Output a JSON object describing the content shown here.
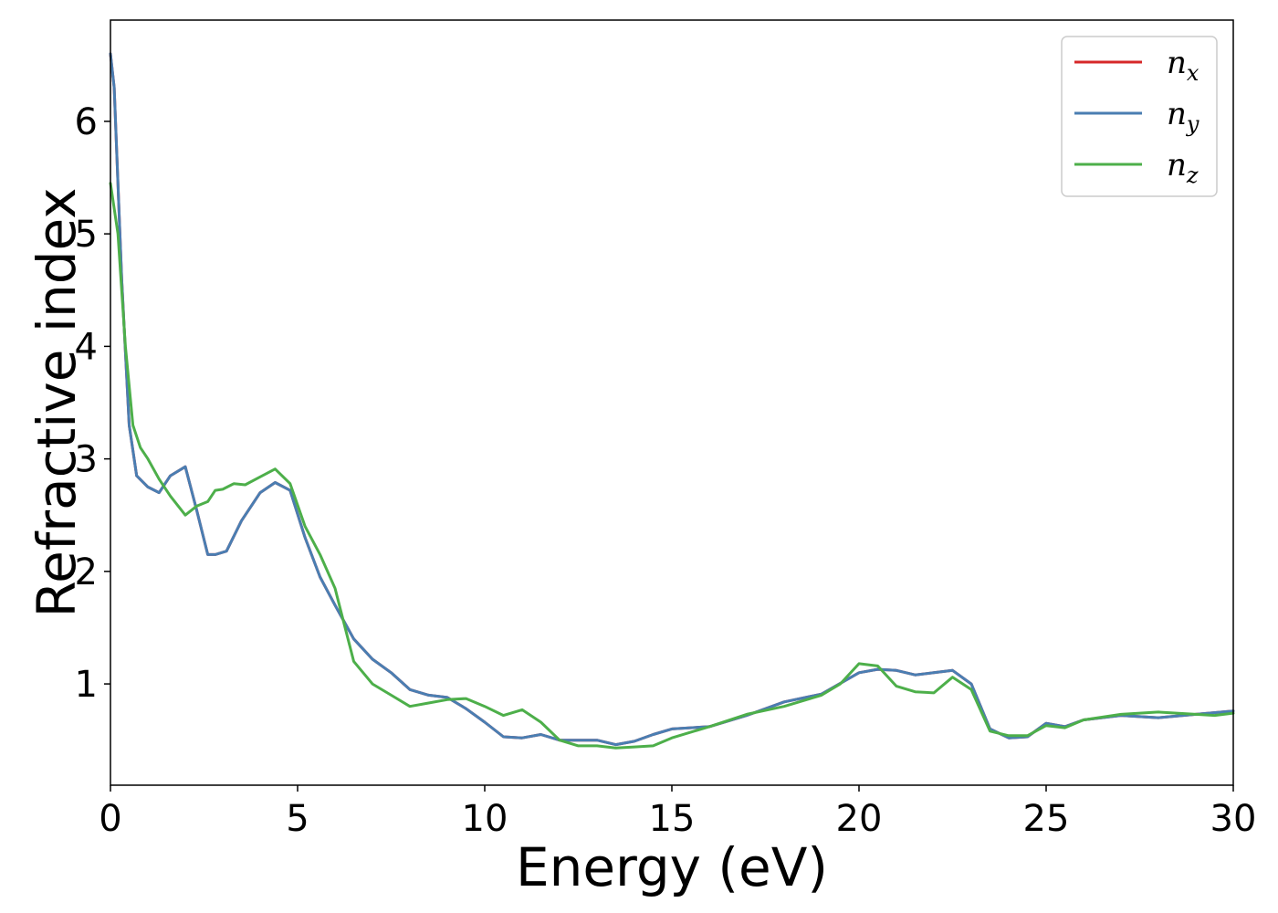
{
  "chart_data": {
    "type": "line",
    "title": "",
    "xlabel": "Energy (eV)",
    "ylabel": "Refractive index",
    "xlim": [
      0,
      30
    ],
    "ylim": [
      0.1,
      6.9
    ],
    "xticks": [
      0,
      5,
      10,
      15,
      20,
      25,
      30
    ],
    "yticks": [
      1,
      2,
      3,
      4,
      5,
      6
    ],
    "grid": false,
    "legend_position": "top-right",
    "series": [
      {
        "name": "n",
        "subscript": "x",
        "color": "#d62728",
        "x": [
          0,
          0.1,
          0.3,
          0.5,
          0.7,
          1.0,
          1.3,
          1.6,
          2.0,
          2.3,
          2.6,
          2.8,
          3.1,
          3.5,
          4.0,
          4.4,
          4.8,
          5.2,
          5.6,
          6.0,
          6.5,
          7.0,
          7.5,
          8.0,
          8.5,
          9.0,
          9.5,
          10.0,
          10.5,
          11.0,
          11.5,
          12.0,
          12.5,
          13.0,
          13.5,
          14.0,
          14.5,
          15.0,
          16.0,
          17.0,
          18.0,
          19.0,
          20.0,
          20.5,
          21.0,
          21.5,
          22.0,
          22.5,
          23.0,
          23.5,
          24.0,
          24.5,
          25.0,
          25.5,
          26.0,
          27.0,
          28.0,
          29.0,
          30.0
        ],
        "values": [
          6.6,
          6.3,
          4.6,
          3.3,
          2.85,
          2.75,
          2.7,
          2.85,
          2.93,
          2.55,
          2.15,
          2.15,
          2.18,
          2.45,
          2.7,
          2.79,
          2.72,
          2.3,
          1.95,
          1.7,
          1.4,
          1.22,
          1.1,
          0.95,
          0.9,
          0.88,
          0.78,
          0.66,
          0.53,
          0.52,
          0.55,
          0.5,
          0.5,
          0.5,
          0.46,
          0.49,
          0.55,
          0.6,
          0.62,
          0.72,
          0.84,
          0.91,
          1.1,
          1.13,
          1.12,
          1.08,
          1.1,
          1.12,
          1.0,
          0.6,
          0.52,
          0.53,
          0.65,
          0.62,
          0.68,
          0.72,
          0.7,
          0.73,
          0.76
        ]
      },
      {
        "name": "n",
        "subscript": "y",
        "color": "#4a7eb2",
        "x": [
          0,
          0.1,
          0.3,
          0.5,
          0.7,
          1.0,
          1.3,
          1.6,
          2.0,
          2.3,
          2.6,
          2.8,
          3.1,
          3.5,
          4.0,
          4.4,
          4.8,
          5.2,
          5.6,
          6.0,
          6.5,
          7.0,
          7.5,
          8.0,
          8.5,
          9.0,
          9.5,
          10.0,
          10.5,
          11.0,
          11.5,
          12.0,
          12.5,
          13.0,
          13.5,
          14.0,
          14.5,
          15.0,
          16.0,
          17.0,
          18.0,
          19.0,
          20.0,
          20.5,
          21.0,
          21.5,
          22.0,
          22.5,
          23.0,
          23.5,
          24.0,
          24.5,
          25.0,
          25.5,
          26.0,
          27.0,
          28.0,
          29.0,
          30.0
        ],
        "values": [
          6.6,
          6.3,
          4.6,
          3.3,
          2.85,
          2.75,
          2.7,
          2.85,
          2.93,
          2.55,
          2.15,
          2.15,
          2.18,
          2.45,
          2.7,
          2.79,
          2.72,
          2.3,
          1.95,
          1.7,
          1.4,
          1.22,
          1.1,
          0.95,
          0.9,
          0.88,
          0.78,
          0.66,
          0.53,
          0.52,
          0.55,
          0.5,
          0.5,
          0.5,
          0.46,
          0.49,
          0.55,
          0.6,
          0.62,
          0.72,
          0.84,
          0.91,
          1.1,
          1.13,
          1.12,
          1.08,
          1.1,
          1.12,
          1.0,
          0.6,
          0.52,
          0.53,
          0.65,
          0.62,
          0.68,
          0.72,
          0.7,
          0.73,
          0.76
        ]
      },
      {
        "name": "n",
        "subscript": "z",
        "color": "#4daf4a",
        "x": [
          0,
          0.2,
          0.4,
          0.6,
          0.8,
          1.0,
          1.3,
          1.6,
          2.0,
          2.3,
          2.6,
          2.8,
          3.0,
          3.3,
          3.6,
          4.0,
          4.4,
          4.8,
          5.2,
          5.6,
          6.0,
          6.5,
          7.0,
          7.5,
          8.0,
          8.5,
          9.0,
          9.5,
          10.0,
          10.5,
          11.0,
          11.5,
          12.0,
          12.5,
          13.0,
          13.5,
          14.0,
          14.5,
          15.0,
          16.0,
          17.0,
          18.0,
          19.0,
          19.5,
          20.0,
          20.5,
          21.0,
          21.5,
          22.0,
          22.5,
          23.0,
          23.5,
          24.0,
          24.5,
          25.0,
          25.5,
          26.0,
          27.0,
          28.0,
          29.0,
          29.5,
          30.0
        ],
        "values": [
          5.45,
          5.0,
          4.0,
          3.3,
          3.1,
          3.0,
          2.82,
          2.67,
          2.5,
          2.58,
          2.62,
          2.72,
          2.73,
          2.78,
          2.77,
          2.84,
          2.91,
          2.78,
          2.4,
          2.15,
          1.85,
          1.2,
          1.0,
          0.9,
          0.8,
          0.83,
          0.86,
          0.87,
          0.8,
          0.72,
          0.77,
          0.66,
          0.5,
          0.45,
          0.45,
          0.43,
          0.44,
          0.45,
          0.52,
          0.62,
          0.73,
          0.8,
          0.9,
          1.0,
          1.18,
          1.16,
          0.98,
          0.93,
          0.92,
          1.06,
          0.95,
          0.58,
          0.54,
          0.54,
          0.63,
          0.61,
          0.68,
          0.73,
          0.75,
          0.73,
          0.72,
          0.74
        ]
      }
    ]
  }
}
